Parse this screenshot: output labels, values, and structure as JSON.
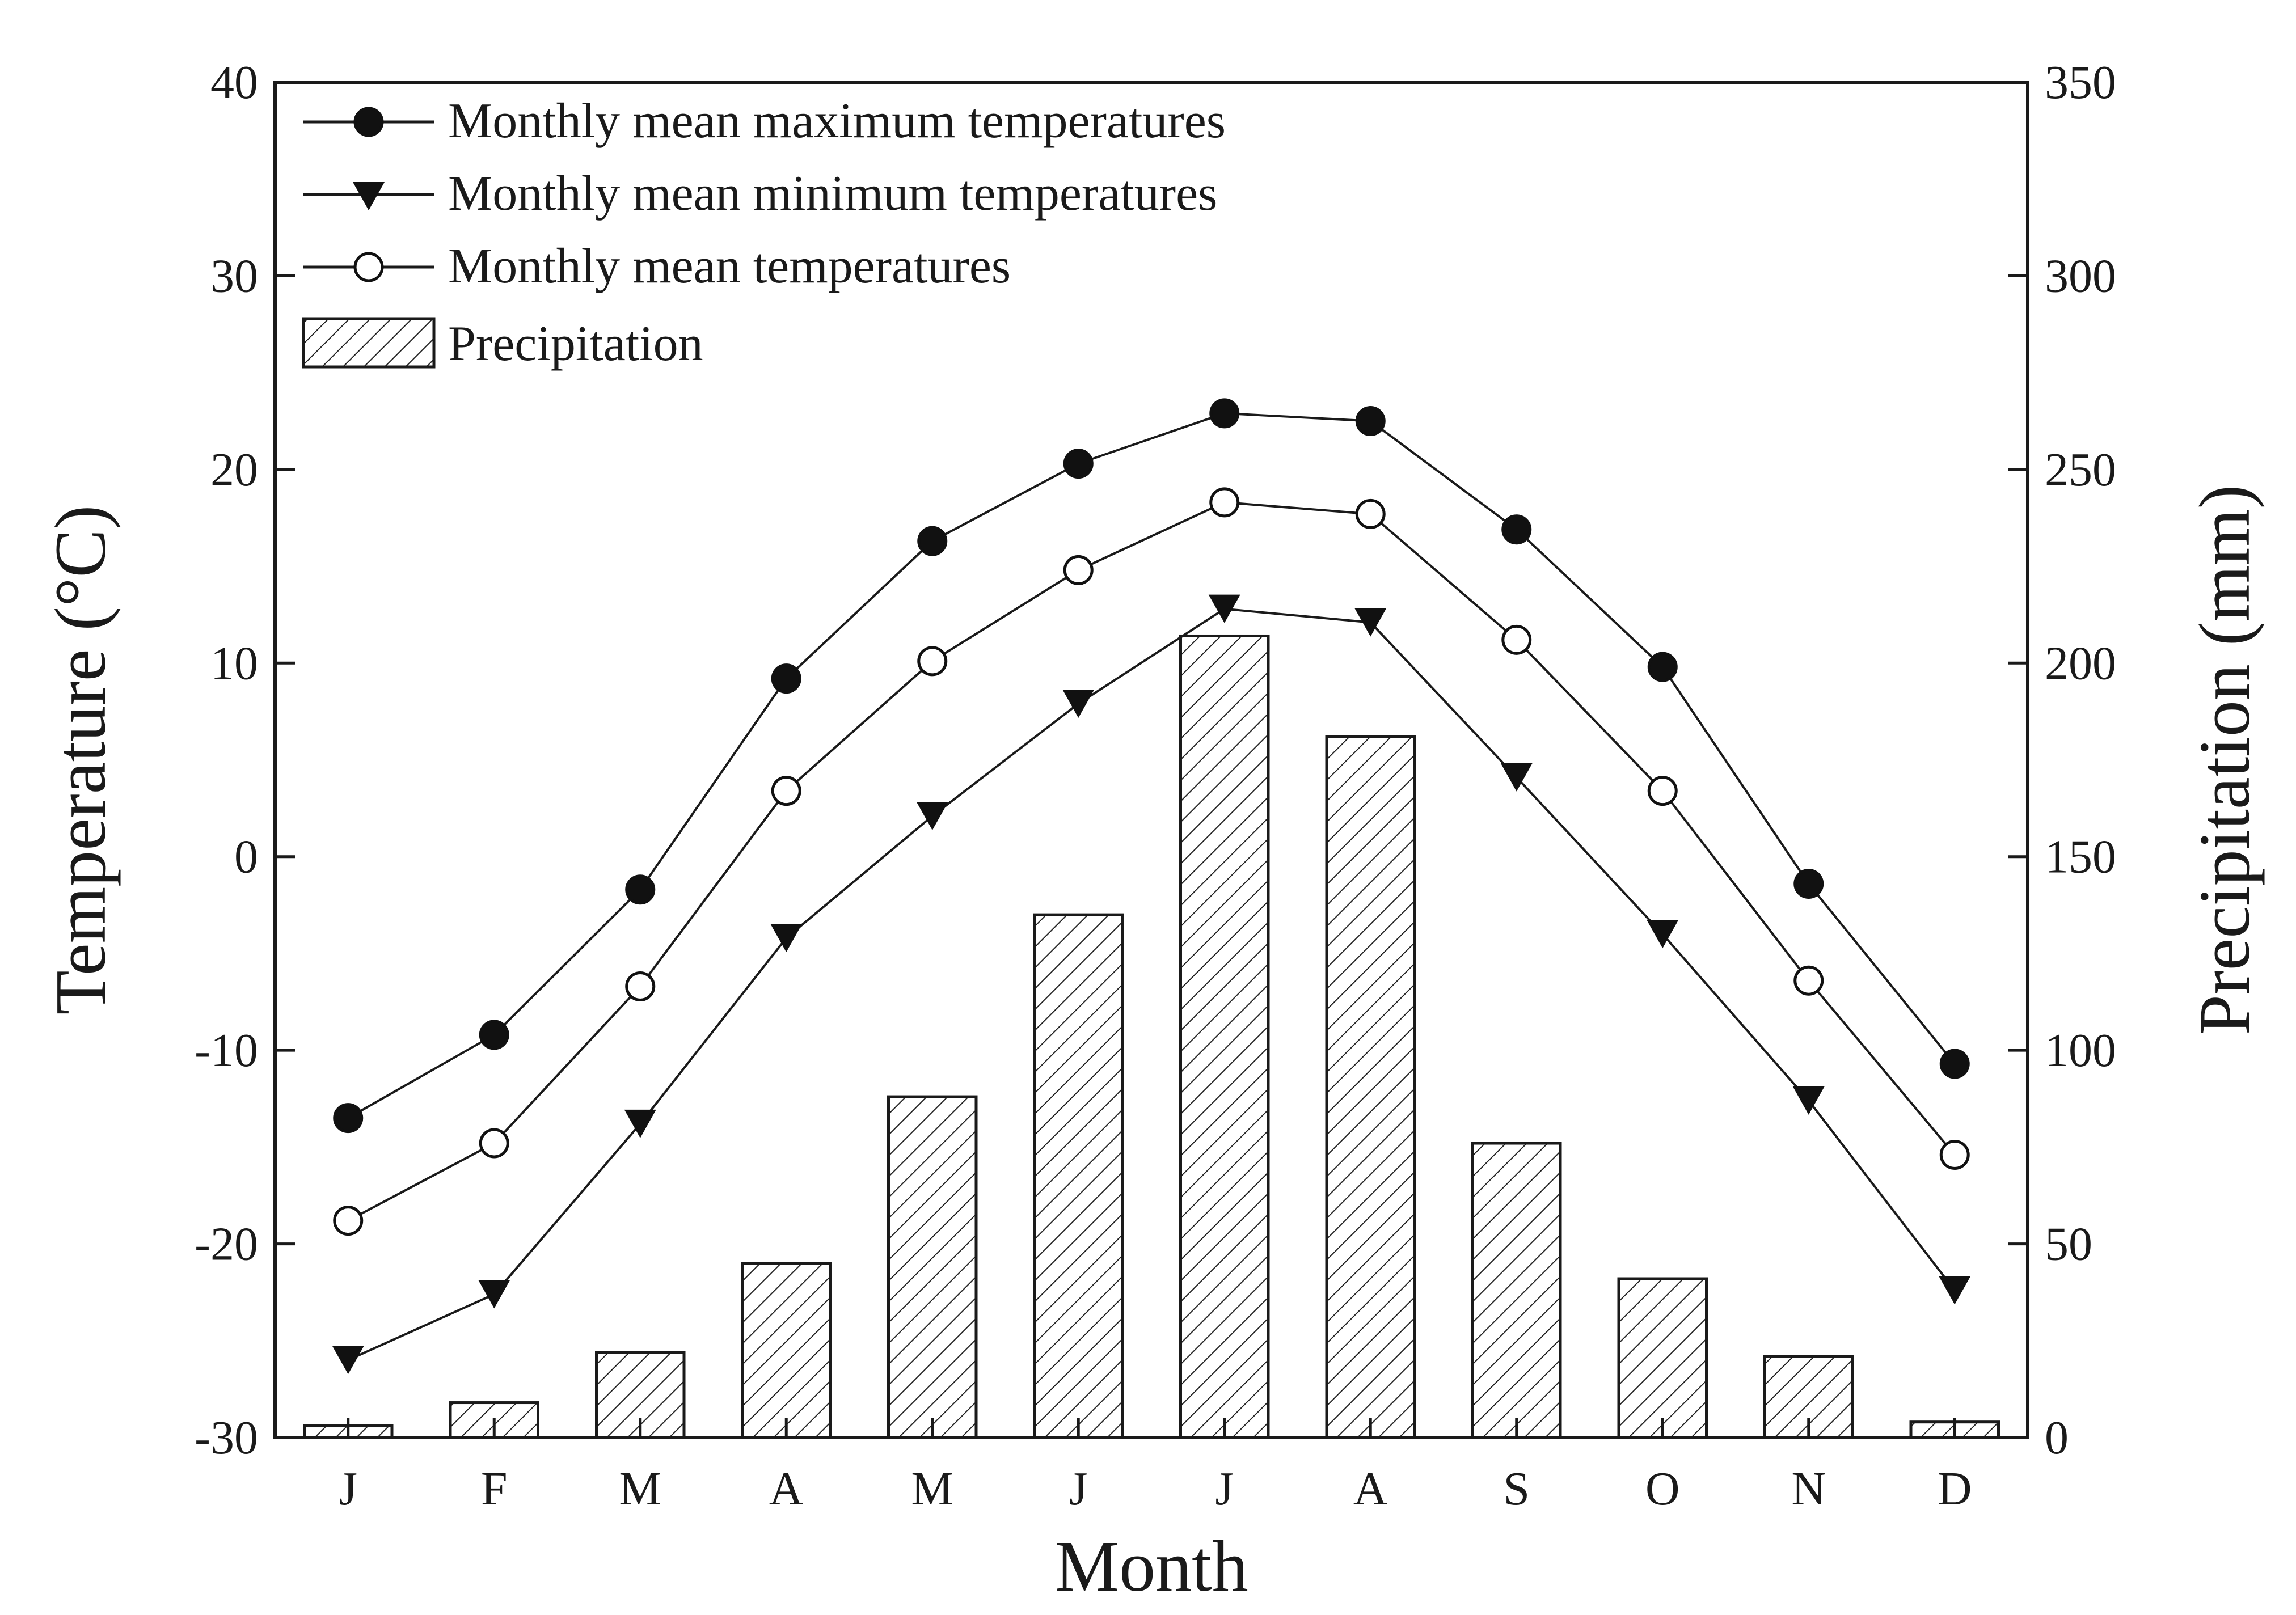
{
  "chart_data": {
    "type": "bar+line",
    "title": "",
    "categories": [
      "J",
      "F",
      "M",
      "A",
      "M",
      "J",
      "J",
      "A",
      "S",
      "O",
      "N",
      "D"
    ],
    "xlabel": "Month",
    "ylabel_left": "Temperature (°C)",
    "ylabel_right": "Precipitation (mm)",
    "ylim_left": [
      -30,
      40
    ],
    "ylim_right": [
      0,
      350
    ],
    "yticks_left": [
      "-30",
      "-20",
      "-10",
      "0",
      "10",
      "20",
      "30",
      "40"
    ],
    "yticks_right": [
      "0",
      "50",
      "100",
      "150",
      "200",
      "250",
      "300",
      "350"
    ],
    "legend_position": "top-left",
    "series": [
      {
        "name": "Monthly mean maximum temperatures",
        "type": "line",
        "marker": "filled-circle",
        "axis": "left",
        "values": [
          -13.5,
          -9.2,
          -1.7,
          9.2,
          16.3,
          20.3,
          22.9,
          22.5,
          16.9,
          9.8,
          -1.4,
          -10.7
        ]
      },
      {
        "name": "Monthly mean minimum temperatures",
        "type": "line",
        "marker": "filled-triangle-down",
        "axis": "left",
        "values": [
          -26.0,
          -22.6,
          -13.8,
          -4.2,
          2.1,
          7.9,
          12.8,
          12.1,
          4.1,
          -4.0,
          -12.6,
          -22.4
        ]
      },
      {
        "name": "Monthly mean temperatures",
        "type": "line",
        "marker": "open-circle",
        "axis": "left",
        "values": [
          -18.8,
          -14.8,
          -6.7,
          3.4,
          10.1,
          14.8,
          18.3,
          17.7,
          11.2,
          3.4,
          -6.4,
          -15.4
        ]
      },
      {
        "name": "Precipitation",
        "type": "bar",
        "pattern": "hatched",
        "axis": "right",
        "values": [
          3,
          9,
          22,
          45,
          88,
          135,
          207,
          181,
          76,
          41,
          21,
          4
        ]
      }
    ]
  }
}
